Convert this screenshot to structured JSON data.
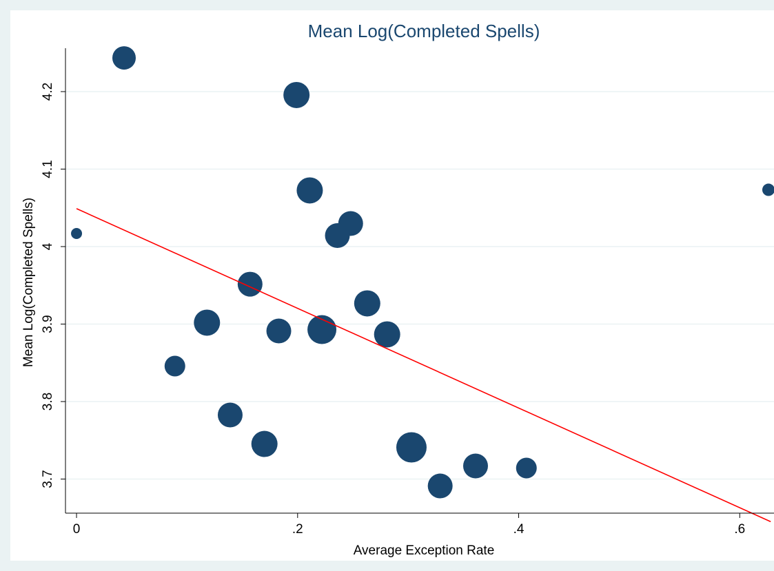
{
  "chart_data": {
    "type": "scatter",
    "title": "Mean Log(Completed Spells)",
    "x_label": "Average Exception Rate",
    "y_label": "Mean Log(Completed Spells)",
    "xlim": [
      -0.01,
      0.631
    ],
    "ylim": [
      3.656,
      4.256
    ],
    "xticks": [
      {
        "value": 0,
        "label": "0"
      },
      {
        "value": 0.2,
        "label": ".2"
      },
      {
        "value": 0.4,
        "label": ".4"
      },
      {
        "value": 0.6,
        "label": ".6"
      }
    ],
    "yticks": [
      3.7,
      3.8,
      3.9,
      4,
      4.1,
      4.2
    ],
    "grid": true,
    "series": [
      {
        "color": "#1a476f",
        "x": [
          0.043,
          0.199,
          0.211,
          0,
          0.248,
          0.236,
          0.626,
          0.157,
          0.263,
          0.118,
          0.183,
          0.222,
          0.281,
          0.089,
          0.139,
          0.17,
          0.303,
          0.329,
          0.361,
          0.407
        ],
        "values": [
          4.2435,
          4.1956,
          4.0725,
          4.0169,
          4.0298,
          4.0142,
          4.0733,
          3.9515,
          3.9267,
          3.9018,
          3.8911,
          3.8929,
          3.8867,
          3.8458,
          3.7827,
          3.7453,
          3.7409,
          3.6911,
          3.7169,
          3.7142
        ],
        "sizes": [
          289,
          361,
          361,
          64,
          324,
          324,
          81,
          324,
          361,
          361,
          324,
          441,
          361,
          225,
          324,
          361,
          484,
          324,
          324,
          225
        ]
      },
      {
        "type": "line",
        "color": "#ff0000",
        "x": [
          0,
          0.628
        ],
        "values": [
          4.049,
          3.645
        ]
      }
    ]
  }
}
